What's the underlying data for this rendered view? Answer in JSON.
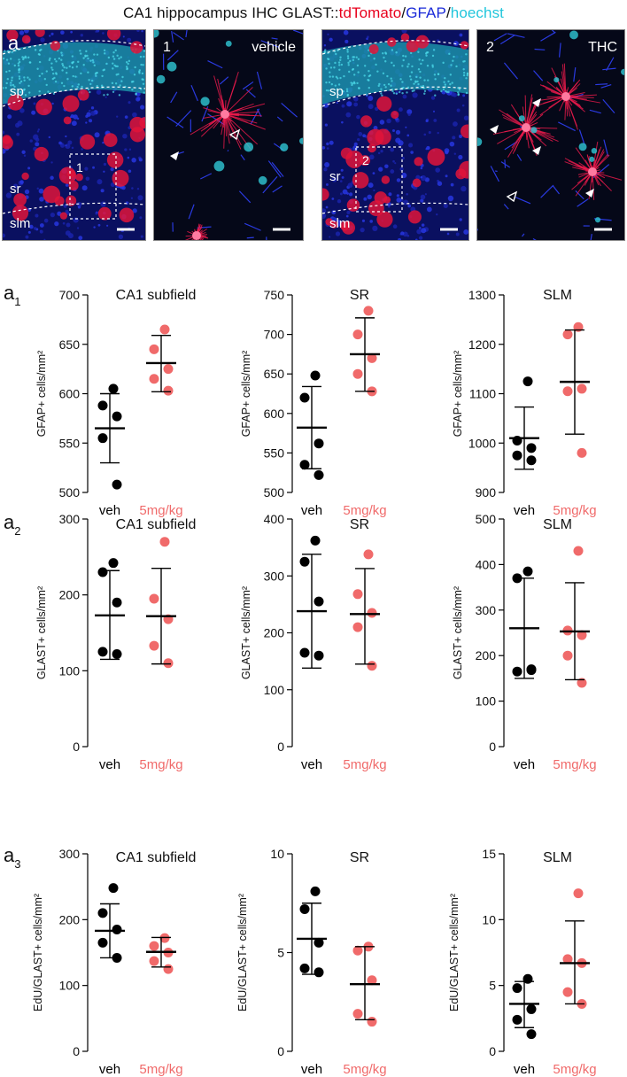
{
  "figure": {
    "title_prefix": "CA1 hippocampus IHC GLAST::",
    "title_red": "tdTomato",
    "title_sep1": "/",
    "title_blue": "GFAP",
    "title_sep2": "/",
    "title_cyan": "hoechst",
    "colors": {
      "red": "#e8001c",
      "blue": "#1a2ad8",
      "cyan": "#22c6dc",
      "veh": "#000000",
      "thc": "#f06a6a"
    }
  },
  "micrographs": [
    {
      "id": "a",
      "label": "a",
      "layers": [
        "sp",
        "sr",
        "slm"
      ],
      "inset": "1"
    },
    {
      "id": "a-zoom-1",
      "label": "1",
      "condition": "vehicle"
    },
    {
      "id": "b",
      "layers": [
        "sp",
        "sr",
        "slm"
      ],
      "inset": "2"
    },
    {
      "id": "b-zoom-2",
      "label": "2",
      "condition": "THC"
    }
  ],
  "rows": [
    {
      "label": "a",
      "sub": "1",
      "ylabel": "GFAP+ cells/mm²"
    },
    {
      "label": "a",
      "sub": "2",
      "ylabel": "GLAST+ cells/mm²"
    },
    {
      "label": "a",
      "sub": "3",
      "ylabel": "EdU/GLAST+ cells/mm²"
    }
  ],
  "chart_data": [
    {
      "type": "scatter",
      "row": 0,
      "col": 0,
      "title": "CA1 subfield",
      "ylabel": "GFAP+ cells/mm²",
      "categories": [
        "veh",
        "5mg/kg"
      ],
      "ylim": [
        500,
        700
      ],
      "yticks": [
        500,
        550,
        600,
        650,
        700
      ],
      "series": [
        {
          "name": "veh",
          "points": [
            605,
            588,
            577,
            555,
            508
          ],
          "mean": 565,
          "sd_low": 530,
          "sd_high": 600
        },
        {
          "name": "5mg/kg",
          "points": [
            665,
            645,
            625,
            615,
            603
          ],
          "mean": 631,
          "sd_low": 602,
          "sd_high": 659
        }
      ]
    },
    {
      "type": "scatter",
      "row": 0,
      "col": 1,
      "title": "SR",
      "ylabel": "GFAP+ cells/mm²",
      "categories": [
        "veh",
        "5mg/kg"
      ],
      "ylim": [
        500,
        750
      ],
      "yticks": [
        500,
        550,
        600,
        650,
        700,
        750
      ],
      "series": [
        {
          "name": "veh",
          "points": [
            648,
            620,
            562,
            535,
            522
          ],
          "mean": 582,
          "sd_low": 530,
          "sd_high": 634
        },
        {
          "name": "5mg/kg",
          "points": [
            730,
            700,
            670,
            650,
            628
          ],
          "mean": 675,
          "sd_low": 628,
          "sd_high": 721
        }
      ]
    },
    {
      "type": "scatter",
      "row": 0,
      "col": 2,
      "title": "SLM",
      "ylabel": "GFAP+ cells/mm²",
      "categories": [
        "veh",
        "5mg/kg"
      ],
      "ylim": [
        900,
        1300
      ],
      "yticks": [
        900,
        1000,
        1100,
        1200,
        1300
      ],
      "series": [
        {
          "name": "veh",
          "points": [
            1125,
            1005,
            990,
            975,
            965
          ],
          "mean": 1010,
          "sd_low": 947,
          "sd_high": 1073
        },
        {
          "name": "5mg/kg",
          "points": [
            1235,
            1220,
            1110,
            1105,
            980
          ],
          "mean": 1124,
          "sd_low": 1018,
          "sd_high": 1229
        }
      ]
    },
    {
      "type": "scatter",
      "row": 1,
      "col": 0,
      "title": "CA1 subfield",
      "ylabel": "GLAST+ cells/mm²",
      "categories": [
        "veh",
        "5mg/kg"
      ],
      "ylim": [
        0,
        300
      ],
      "yticks": [
        0,
        100,
        200,
        300
      ],
      "series": [
        {
          "name": "veh",
          "points": [
            242,
            230,
            190,
            125,
            122
          ],
          "mean": 173,
          "sd_low": 115,
          "sd_high": 232
        },
        {
          "name": "5mg/kg",
          "points": [
            270,
            195,
            168,
            133,
            110
          ],
          "mean": 172,
          "sd_low": 109,
          "sd_high": 235
        }
      ]
    },
    {
      "type": "scatter",
      "row": 1,
      "col": 1,
      "title": "SR",
      "ylabel": "GLAST+ cells/mm²",
      "categories": [
        "veh",
        "5mg/kg"
      ],
      "ylim": [
        0,
        400
      ],
      "yticks": [
        0,
        100,
        200,
        300,
        400
      ],
      "series": [
        {
          "name": "veh",
          "points": [
            362,
            325,
            255,
            165,
            160
          ],
          "mean": 238,
          "sd_low": 138,
          "sd_high": 338
        },
        {
          "name": "5mg/kg",
          "points": [
            338,
            268,
            235,
            210,
            142
          ],
          "mean": 233,
          "sd_low": 145,
          "sd_high": 313
        }
      ]
    },
    {
      "type": "scatter",
      "row": 1,
      "col": 2,
      "title": "SLM",
      "ylabel": "GLAST+ cells/mm²",
      "categories": [
        "veh",
        "5mg/kg"
      ],
      "ylim": [
        0,
        500
      ],
      "yticks": [
        0,
        100,
        200,
        300,
        400,
        500
      ],
      "series": [
        {
          "name": "veh",
          "points": [
            385,
            370,
            170,
            165,
            168
          ],
          "mean": 260,
          "sd_low": 150,
          "sd_high": 370
        },
        {
          "name": "5mg/kg",
          "points": [
            430,
            255,
            245,
            200,
            140
          ],
          "mean": 253,
          "sd_low": 147,
          "sd_high": 360
        }
      ]
    },
    {
      "type": "scatter",
      "row": 2,
      "col": 0,
      "title": "CA1 subfield",
      "ylabel": "EdU/GLAST+ cells/mm²",
      "categories": [
        "veh",
        "5mg/kg"
      ],
      "ylim": [
        0,
        300
      ],
      "yticks": [
        0,
        100,
        200,
        300
      ],
      "series": [
        {
          "name": "veh",
          "points": [
            248,
            210,
            185,
            165,
            142
          ],
          "mean": 183,
          "sd_low": 142,
          "sd_high": 224
        },
        {
          "name": "5mg/kg",
          "points": [
            172,
            160,
            150,
            137,
            125
          ],
          "mean": 151,
          "sd_low": 128,
          "sd_high": 173
        }
      ]
    },
    {
      "type": "scatter",
      "row": 2,
      "col": 1,
      "title": "SR",
      "ylabel": "EdU/GLAST+ cells/mm²",
      "categories": [
        "veh",
        "5mg/kg"
      ],
      "ylim": [
        0,
        10
      ],
      "yticks": [
        0,
        5,
        10
      ],
      "series": [
        {
          "name": "veh",
          "points": [
            8.1,
            7.2,
            5.5,
            4.2,
            4.0
          ],
          "mean": 5.7,
          "sd_low": 3.9,
          "sd_high": 7.5
        },
        {
          "name": "5mg/kg",
          "points": [
            5.3,
            5.1,
            3.6,
            1.9,
            1.5
          ],
          "mean": 3.4,
          "sd_low": 1.6,
          "sd_high": 5.3
        }
      ]
    },
    {
      "type": "scatter",
      "row": 2,
      "col": 2,
      "title": "SLM",
      "ylabel": "EdU/GLAST+ cells/mm²",
      "categories": [
        "veh",
        "5mg/kg"
      ],
      "ylim": [
        0,
        15
      ],
      "yticks": [
        0,
        5,
        10,
        15
      ],
      "series": [
        {
          "name": "veh",
          "points": [
            5.5,
            4.8,
            3.2,
            2.4,
            1.3
          ],
          "mean": 3.6,
          "sd_low": 1.8,
          "sd_high": 5.3
        },
        {
          "name": "5mg/kg",
          "points": [
            12.0,
            7.0,
            6.7,
            4.5,
            3.6
          ],
          "mean": 6.7,
          "sd_low": 3.6,
          "sd_high": 9.9
        }
      ]
    }
  ]
}
